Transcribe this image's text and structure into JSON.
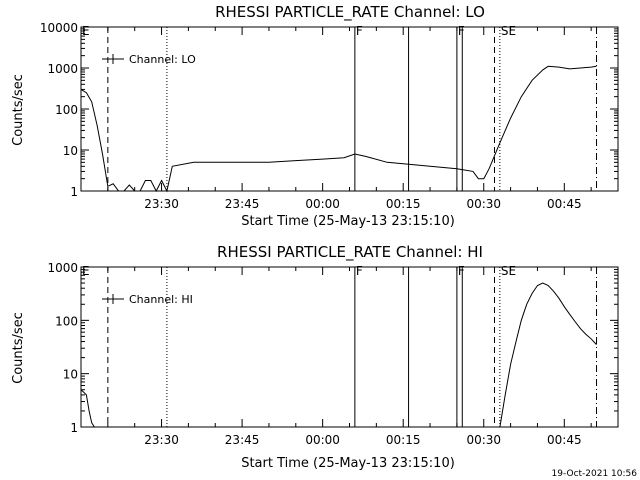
{
  "footer": {
    "timestamp": "19-Oct-2021 10:56"
  },
  "chart_data": [
    {
      "type": "line",
      "title": "RHESSI PARTICLE_RATE Channel: LO",
      "xlabel": "Start Time (25-May-13 23:15:10)",
      "ylabel": "Counts/sec",
      "yscale": "log",
      "ylim": [
        1,
        10000
      ],
      "y_ticks": [
        {
          "value": 1,
          "label": "1"
        },
        {
          "value": 10,
          "label": "10"
        },
        {
          "value": 100,
          "label": "100"
        },
        {
          "value": 1000,
          "label": "1000"
        },
        {
          "value": 10000,
          "label": "10000"
        }
      ],
      "xlim": [
        "23:15",
        "00:55"
      ],
      "x_ticks": [
        {
          "value": "23:30",
          "label": "23:30"
        },
        {
          "value": "23:45",
          "label": "23:45"
        },
        {
          "value": "00:00",
          "label": "00:00"
        },
        {
          "value": "00:15",
          "label": "00:15"
        },
        {
          "value": "00:30",
          "label": "00:30"
        },
        {
          "value": "00:45",
          "label": "00:45"
        }
      ],
      "legend": {
        "placement": "top-left",
        "entries": [
          "Channel: LO"
        ]
      },
      "markers": [
        {
          "time": "23:15",
          "label": "E",
          "style": "solid"
        },
        {
          "time": "23:20",
          "label": "",
          "style": "dashed"
        },
        {
          "time": "23:31",
          "label": "",
          "style": "dotted"
        },
        {
          "time": "00:06",
          "label": "F",
          "style": "solid"
        },
        {
          "time": "00:16",
          "label": "",
          "style": "solid"
        },
        {
          "time": "00:25",
          "label": "F",
          "style": "solid"
        },
        {
          "time": "00:26",
          "label": "",
          "style": "solid"
        },
        {
          "time": "00:32",
          "label": "",
          "style": "dashed"
        },
        {
          "time": "00:33",
          "label": "SE",
          "style": "dotted"
        },
        {
          "time": "00:51",
          "label": "",
          "style": "dashdot"
        }
      ],
      "series": [
        {
          "name": "Channel: LO",
          "x": [
            "23:15",
            "23:16",
            "23:17",
            "23:18",
            "23:19",
            "23:20",
            "23:21",
            "23:22",
            "23:23",
            "23:24",
            "23:25",
            "23:26",
            "23:27",
            "23:28",
            "23:29",
            "23:30",
            "23:31",
            "23:32",
            "23:36",
            "23:40",
            "23:45",
            "23:50",
            "23:55",
            "00:00",
            "00:04",
            "00:06",
            "00:08",
            "00:12",
            "00:16",
            "00:20",
            "00:25",
            "00:28",
            "00:29",
            "00:30",
            "00:31",
            "00:33",
            "00:35",
            "00:37",
            "00:39",
            "00:41",
            "00:42",
            "00:44",
            "00:46",
            "00:48",
            "00:50",
            "00:51"
          ],
          "values": [
            300,
            250,
            150,
            40,
            8,
            1.3,
            1.5,
            1,
            1,
            1.4,
            1,
            1,
            1.8,
            1.8,
            1,
            1.8,
            1,
            4,
            5,
            5,
            5,
            5,
            5.5,
            6,
            6.5,
            8,
            7,
            5,
            4.5,
            4,
            3.5,
            3,
            2,
            2,
            3.5,
            15,
            60,
            200,
            500,
            900,
            1100,
            1050,
            950,
            1000,
            1050,
            1100
          ]
        }
      ]
    },
    {
      "type": "line",
      "title": "RHESSI PARTICLE_RATE Channel: HI",
      "xlabel": "Start Time (25-May-13 23:15:10)",
      "ylabel": "Counts/sec",
      "yscale": "log",
      "ylim": [
        1,
        1000
      ],
      "y_ticks": [
        {
          "value": 1,
          "label": "1"
        },
        {
          "value": 10,
          "label": "10"
        },
        {
          "value": 100,
          "label": "100"
        },
        {
          "value": 1000,
          "label": "1000"
        }
      ],
      "xlim": [
        "23:15",
        "00:55"
      ],
      "x_ticks": [
        {
          "value": "23:30",
          "label": "23:30"
        },
        {
          "value": "23:45",
          "label": "23:45"
        },
        {
          "value": "00:00",
          "label": "00:00"
        },
        {
          "value": "00:15",
          "label": "00:15"
        },
        {
          "value": "00:30",
          "label": "00:30"
        },
        {
          "value": "00:45",
          "label": "00:45"
        }
      ],
      "legend": {
        "placement": "top-left",
        "entries": [
          "Channel: HI"
        ]
      },
      "markers": [
        {
          "time": "23:15",
          "label": "E",
          "style": "solid"
        },
        {
          "time": "23:20",
          "label": "",
          "style": "dashed"
        },
        {
          "time": "23:31",
          "label": "",
          "style": "dotted"
        },
        {
          "time": "00:06",
          "label": "F",
          "style": "solid"
        },
        {
          "time": "00:16",
          "label": "",
          "style": "solid"
        },
        {
          "time": "00:25",
          "label": "F",
          "style": "solid"
        },
        {
          "time": "00:26",
          "label": "",
          "style": "solid"
        },
        {
          "time": "00:32",
          "label": "",
          "style": "dashed"
        },
        {
          "time": "00:33",
          "label": "SE",
          "style": "dotted"
        },
        {
          "time": "00:51",
          "label": "",
          "style": "dashdot"
        }
      ],
      "series": [
        {
          "name": "Channel: HI",
          "x": [
            "23:15",
            "23:15.5",
            "23:16",
            "23:16.5",
            "23:17",
            "23:17.5",
            "00:33",
            "00:34",
            "00:35",
            "00:36",
            "00:37",
            "00:38",
            "00:39",
            "00:40",
            "00:41",
            "00:42",
            "00:43",
            "00:44",
            "00:45",
            "00:46",
            "00:47",
            "00:48",
            "00:49",
            "00:50",
            "00:51"
          ],
          "values": [
            5,
            4.5,
            4,
            2,
            1.2,
            1,
            1,
            4,
            15,
            40,
            100,
            200,
            320,
            450,
            500,
            450,
            350,
            260,
            180,
            130,
            95,
            70,
            55,
            45,
            35
          ]
        }
      ]
    }
  ]
}
